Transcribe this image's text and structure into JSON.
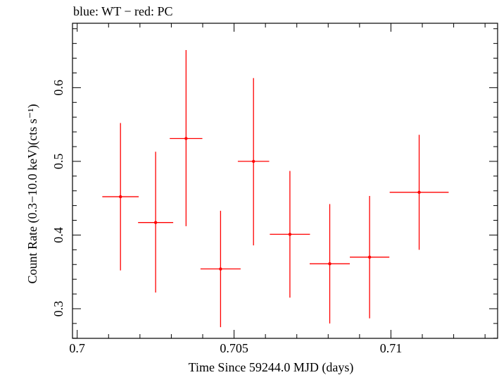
{
  "header": {
    "legend_note": "blue: WT − red: PC"
  },
  "colors": {
    "pc": "#ff0000",
    "axis": "#000000",
    "background": "#ffffff"
  },
  "chart_data": {
    "type": "scatter",
    "title": "blue: WT − red: PC",
    "xlabel": "Time Since 59244.0 MJD (days)",
    "ylabel": "Count Rate (0.3−10.0 keV)(cts s⁻¹)",
    "xlim": [
      0.69985,
      0.7134
    ],
    "ylim": [
      0.2598,
      0.6874
    ],
    "x_ticks": [
      0.7,
      0.705,
      0.71
    ],
    "x_tick_labels": [
      "0.7",
      "0.705",
      "0.71"
    ],
    "y_ticks": [
      0.3,
      0.4,
      0.5,
      0.6
    ],
    "y_tick_labels": [
      "0.3",
      "0.4",
      "0.5",
      "0.6"
    ],
    "grid": false,
    "series": [
      {
        "name": "PC",
        "color": "#ff0000",
        "points": [
          {
            "x": 0.70138,
            "y": 0.452,
            "xerr": 0.00058,
            "yerr_lo": 0.1,
            "yerr_hi": 0.1
          },
          {
            "x": 0.7025,
            "y": 0.417,
            "xerr": 0.00056,
            "yerr_lo": 0.095,
            "yerr_hi": 0.096
          },
          {
            "x": 0.70347,
            "y": 0.531,
            "xerr": 0.00052,
            "yerr_lo": 0.119,
            "yerr_hi": 0.12
          },
          {
            "x": 0.70457,
            "y": 0.354,
            "xerr": 0.00064,
            "yerr_lo": 0.079,
            "yerr_hi": 0.079
          },
          {
            "x": 0.70562,
            "y": 0.5,
            "xerr": 0.0005,
            "yerr_lo": 0.114,
            "yerr_hi": 0.113
          },
          {
            "x": 0.70678,
            "y": 0.401,
            "xerr": 0.00064,
            "yerr_lo": 0.086,
            "yerr_hi": 0.086
          },
          {
            "x": 0.70805,
            "y": 0.361,
            "xerr": 0.00064,
            "yerr_lo": 0.081,
            "yerr_hi": 0.081
          },
          {
            "x": 0.70932,
            "y": 0.37,
            "xerr": 0.00063,
            "yerr_lo": 0.083,
            "yerr_hi": 0.083
          },
          {
            "x": 0.7109,
            "y": 0.458,
            "xerr": 0.00094,
            "yerr_lo": 0.078,
            "yerr_hi": 0.078
          }
        ]
      }
    ]
  }
}
